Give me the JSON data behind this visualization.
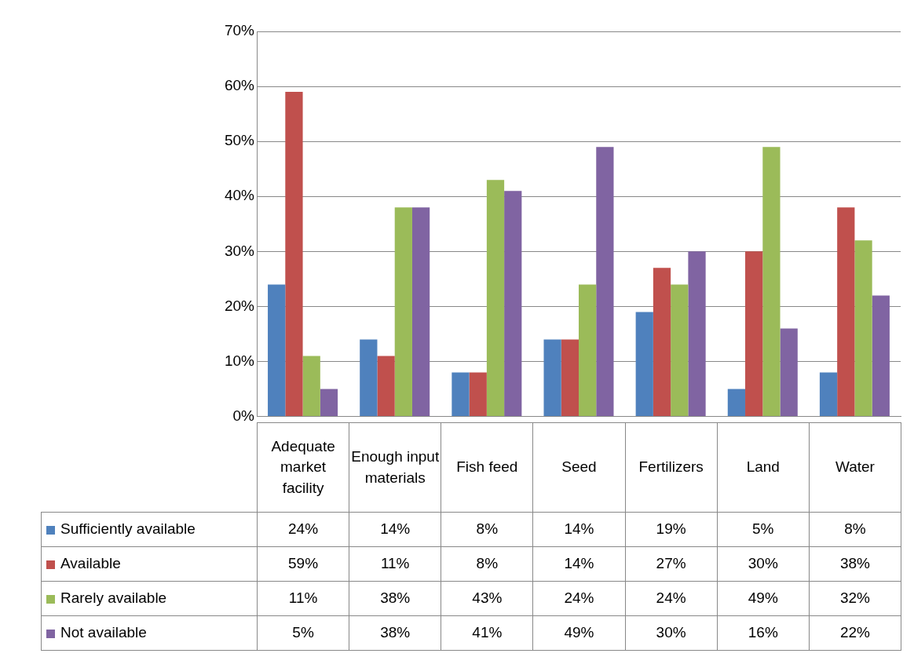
{
  "chart_data": {
    "type": "bar",
    "categories": [
      "Adequate market facility",
      "Enough input materials",
      "Fish feed",
      "Seed",
      "Fertilizers",
      "Land",
      "Water"
    ],
    "series": [
      {
        "name": "Sufficiently  available",
        "color": "#4f81bd",
        "values": [
          24,
          14,
          8,
          14,
          19,
          5,
          8
        ],
        "value_labels": [
          "24%",
          "14%",
          "8%",
          "14%",
          "19%",
          "5%",
          "8%"
        ]
      },
      {
        "name": "Available",
        "color": "#c0504d",
        "values": [
          59,
          11,
          8,
          14,
          27,
          30,
          38
        ],
        "value_labels": [
          "59%",
          "11%",
          "8%",
          "14%",
          "27%",
          "30%",
          "38%"
        ]
      },
      {
        "name": "Rarely available",
        "color": "#9bbb59",
        "values": [
          11,
          38,
          43,
          24,
          24,
          49,
          32
        ],
        "value_labels": [
          "11%",
          "38%",
          "43%",
          "24%",
          "24%",
          "49%",
          "32%"
        ]
      },
      {
        "name": "Not available",
        "color": "#8064a2",
        "values": [
          5,
          38,
          41,
          49,
          30,
          16,
          22
        ],
        "value_labels": [
          "5%",
          "38%",
          "41%",
          "49%",
          "30%",
          "16%",
          "22%"
        ]
      }
    ],
    "ylim": [
      0,
      70
    ],
    "yticks": [
      {
        "value": 0,
        "label": "0%"
      },
      {
        "value": 10,
        "label": "10%"
      },
      {
        "value": 20,
        "label": "20%"
      },
      {
        "value": 30,
        "label": "30%"
      },
      {
        "value": 40,
        "label": "40%"
      },
      {
        "value": 50,
        "label": "50%"
      },
      {
        "value": 60,
        "label": "60%"
      },
      {
        "value": 70,
        "label": "70%"
      }
    ],
    "grid": "y",
    "legend": "bottom"
  }
}
